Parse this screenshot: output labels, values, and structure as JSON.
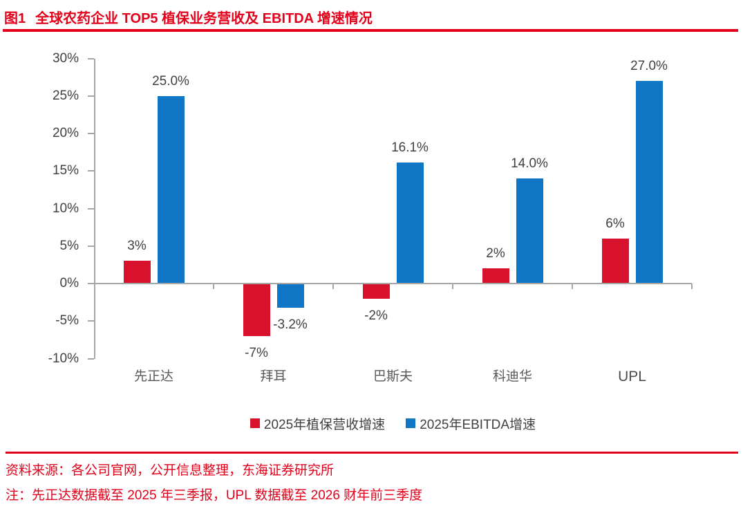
{
  "header": {
    "tag": "图1",
    "title": "全球农药企业 TOP5 植保业务营收及 EBITDA 增速情况"
  },
  "chart_data": {
    "type": "bar",
    "title": "全球农药企业 TOP5 植保业务营收及 EBITDA 增速情况",
    "categories": [
      "先正达",
      "拜耳",
      "巴斯夫",
      "科迪华",
      "UPL"
    ],
    "series": [
      {
        "name": "2025年植保营收增速",
        "color": "#d8122c",
        "values": [
          3,
          -7,
          -2,
          2,
          6
        ],
        "labels": [
          "3%",
          "-7%",
          "-2%",
          "2%",
          "6%"
        ]
      },
      {
        "name": "2025年EBITDA增速",
        "color": "#0e76c5",
        "values": [
          25,
          -3.2,
          16.1,
          14,
          27
        ],
        "labels": [
          "25.0%",
          "-3.2%",
          "16.1%",
          "14.0%",
          "27.0%"
        ]
      }
    ],
    "y_axis": {
      "min": -10,
      "max": 30,
      "step": 5,
      "tick_labels": [
        "30%",
        "25%",
        "20%",
        "15%",
        "10%",
        "5%",
        "0%",
        "-5%",
        "-10%"
      ]
    },
    "xlabel": "",
    "ylabel": "",
    "grid": false,
    "legend_position": "bottom"
  },
  "footer": {
    "source": "资料来源：各公司官网，公开信息整理，东海证券研究所",
    "note": "注：先正达数据截至 2025 年三季报，UPL 数据截至 2026 财年前三季度"
  },
  "colors": {
    "accent_red": "#e2001a",
    "bar_red": "#d8122c",
    "bar_blue": "#0e76c5",
    "axis_gray": "#a6a6a6",
    "label_dark": "#404040",
    "label_gray": "#595959"
  }
}
